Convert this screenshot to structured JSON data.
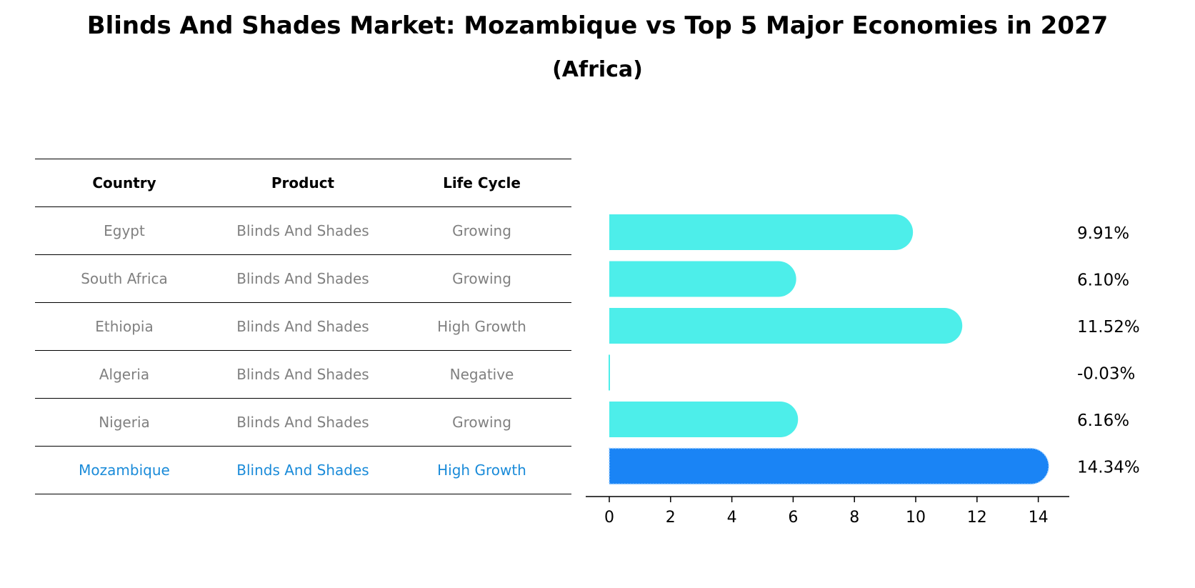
{
  "title": "Blinds And Shades Market: Mozambique vs Top 5 Major Economies in 2027",
  "subtitle": "(Africa)",
  "table": {
    "headers": [
      "Country",
      "Product",
      "Life Cycle"
    ],
    "rows": [
      {
        "country": "Egypt",
        "product": "Blinds And Shades",
        "life_cycle": "Growing"
      },
      {
        "country": "South Africa",
        "product": "Blinds And Shades",
        "life_cycle": "Growing"
      },
      {
        "country": "Ethiopia",
        "product": "Blinds And Shades",
        "life_cycle": "High Growth"
      },
      {
        "country": "Algeria",
        "product": "Blinds And Shades",
        "life_cycle": "Negative"
      },
      {
        "country": "Nigeria",
        "product": "Blinds And Shades",
        "life_cycle": "Growing"
      },
      {
        "country": "Mozambique",
        "product": "Blinds And Shades",
        "life_cycle": "High Growth"
      }
    ]
  },
  "chart_data": {
    "type": "bar",
    "orientation": "horizontal",
    "title": "Blinds And Shades Market: Mozambique vs Top 5 Major Economies in 2027",
    "subtitle": "(Africa)",
    "categories": [
      "Egypt",
      "South Africa",
      "Ethiopia",
      "Algeria",
      "Nigeria",
      "Mozambique"
    ],
    "values": [
      9.91,
      6.1,
      11.52,
      -0.03,
      6.16,
      14.34
    ],
    "value_labels": [
      "9.91%",
      "6.10%",
      "11.52%",
      "-0.03%",
      "6.16%",
      "14.34%"
    ],
    "highlight": "Mozambique",
    "xlim": [
      -0.7,
      15
    ],
    "xticks": [
      0,
      2,
      4,
      6,
      8,
      10,
      12,
      14
    ],
    "grid": false,
    "colors": {
      "default": "#4deeea",
      "highlight": "#1a84f5",
      "highlight_text": "#1a8bd9",
      "muted_text": "#808080"
    }
  }
}
